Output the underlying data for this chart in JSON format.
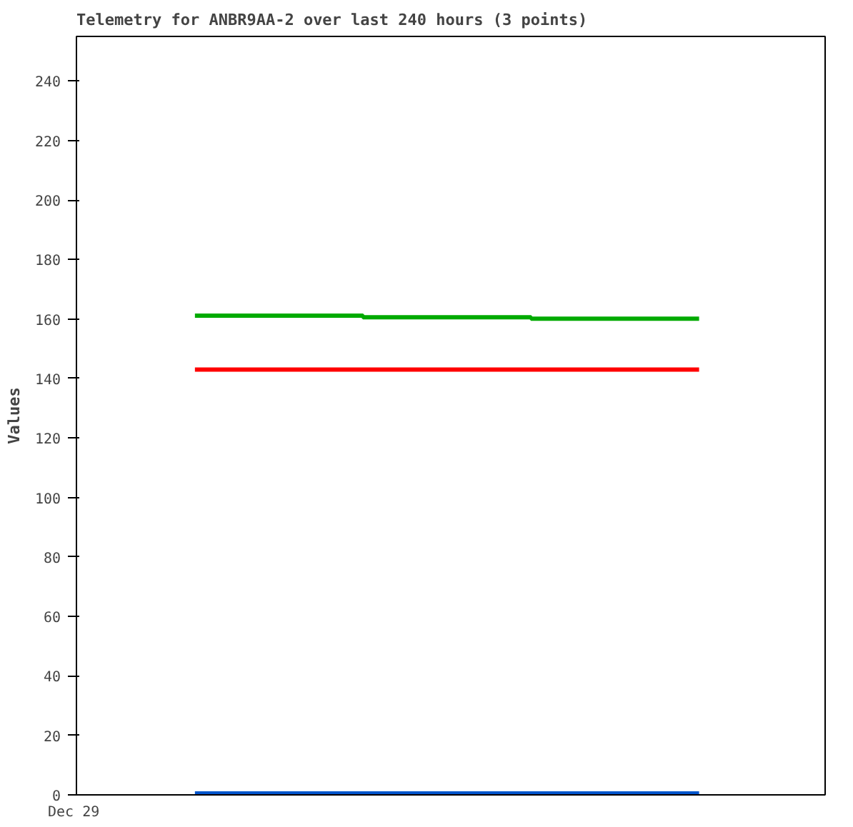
{
  "chart_data": {
    "type": "step",
    "title": "Telemetry for ANBR9AA-2 over last 240 hours (3 points)",
    "ylabel": "Values",
    "categories": [
      null,
      null,
      null,
      null
    ],
    "series": [
      {
        "color": "#00aa00",
        "values": [
          161.1,
          160.6,
          160.1,
          160.1
        ]
      },
      {
        "color": "#ff0000",
        "values": [
          143,
          143,
          143,
          143
        ]
      },
      {
        "color": "#0055cc",
        "values": [
          0.5,
          0.5,
          0.5,
          0.5
        ]
      }
    ],
    "annotations": [
      "Dec 29"
    ],
    "ylim": [
      0,
      255
    ],
    "yticks": [
      0,
      20,
      40,
      60,
      80,
      100,
      120,
      140,
      160,
      180,
      200,
      220,
      240
    ],
    "grid": false
  }
}
